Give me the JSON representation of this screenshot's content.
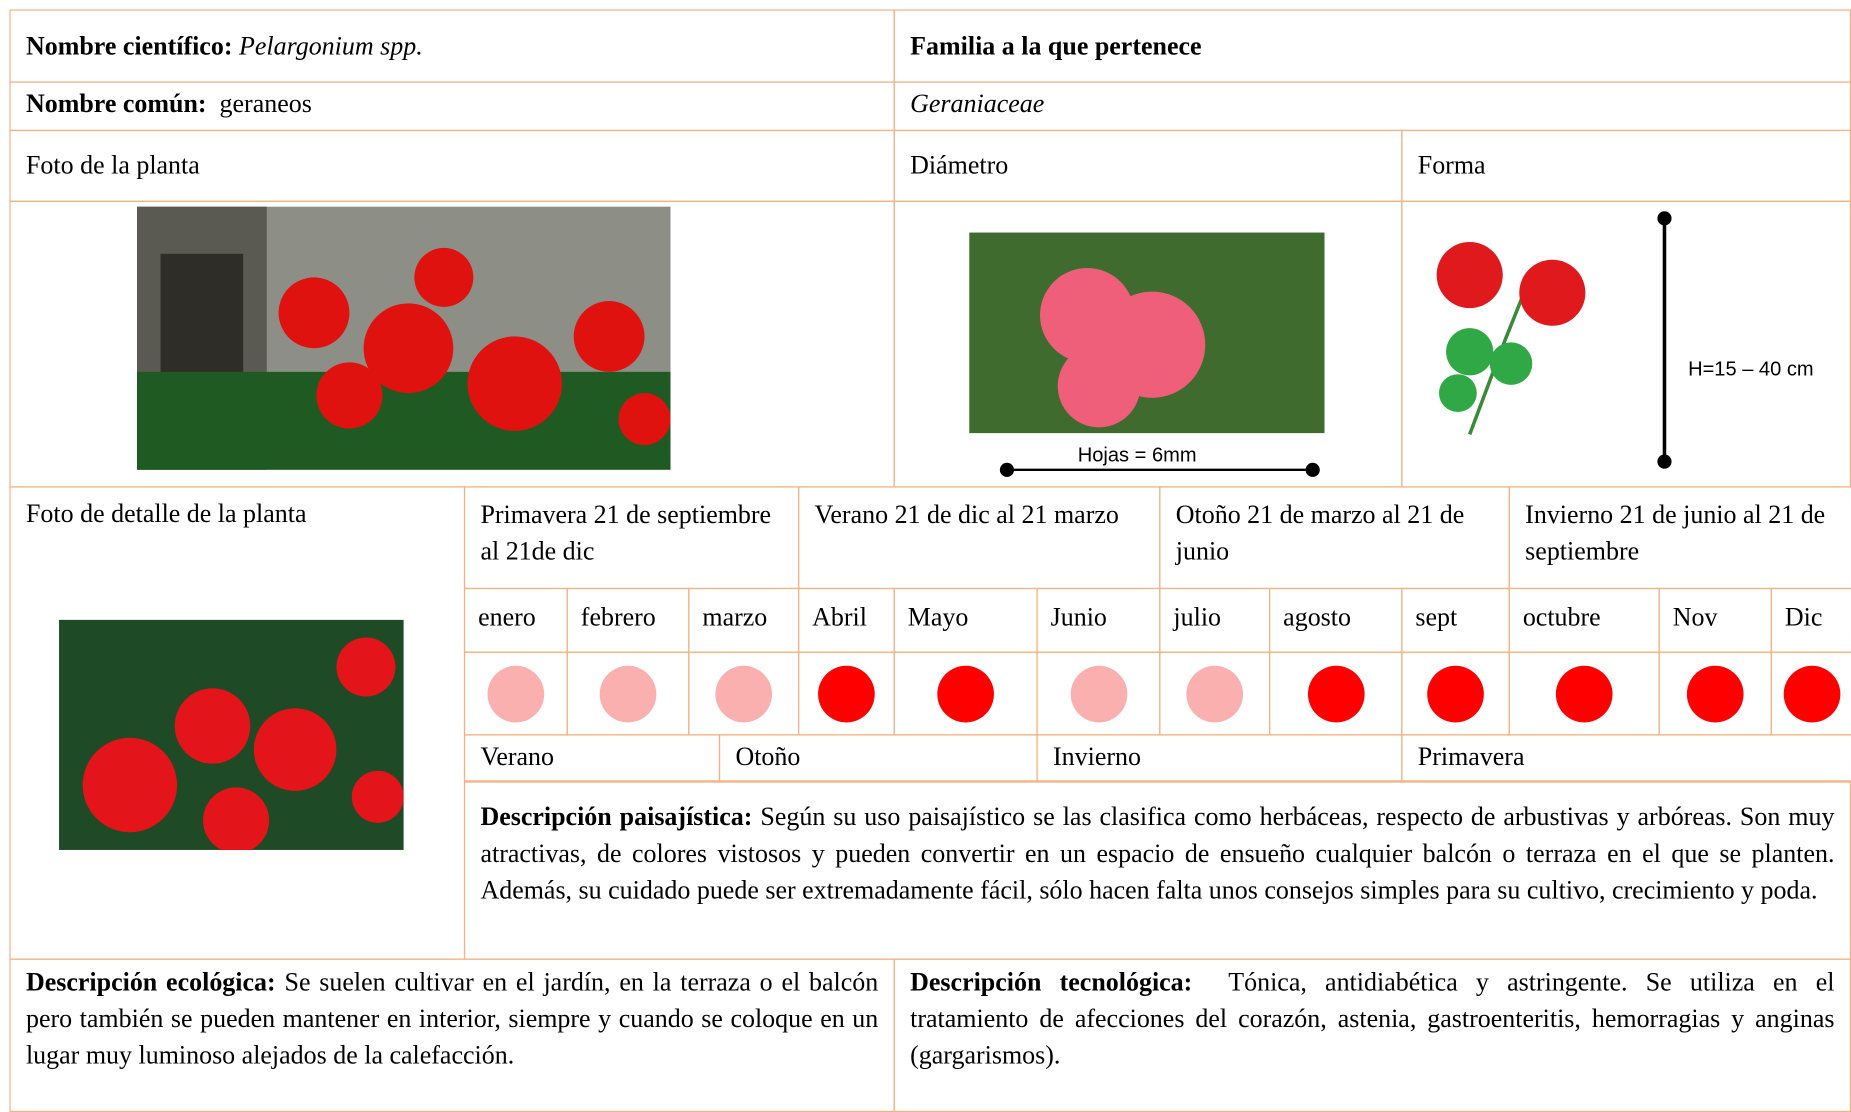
{
  "header": {
    "scientific_name_label": "Nombre científico:",
    "scientific_name": "Pelargonium spp.",
    "family_label": "Familia a la que pertenece",
    "common_name_label": "Nombre común:",
    "common_name": "geraneos",
    "family": "Geraniaceae"
  },
  "photo_label": "Foto de la planta",
  "diameter_label": "Diámetro",
  "shape_label": "Forma",
  "diameter_annotation": "Hojas = 6mm",
  "height_annotation": "H=15 – 40 cm",
  "detail_photo_label": "Foto de detalle de la planta",
  "seasons_top": [
    "Primavera 21 de septiembre al 21de dic",
    "Verano 21 de dic al 21 marzo",
    "Otoño 21 de marzo al 21 de junio",
    "Invierno 21 de junio al 21 de septiembre"
  ],
  "months": [
    {
      "name": "enero",
      "color": "#fbb0b0"
    },
    {
      "name": "febrero",
      "color": "#fbb0b0"
    },
    {
      "name": "marzo",
      "color": "#fbb0b0"
    },
    {
      "name": "Abril",
      "color": "#ff0000"
    },
    {
      "name": "Mayo",
      "color": "#ff0000"
    },
    {
      "name": "Junio",
      "color": "#fbb0b0"
    },
    {
      "name": "julio",
      "color": "#fbb0b0"
    },
    {
      "name": "agosto",
      "color": "#ff0000"
    },
    {
      "name": "sept",
      "color": "#ff0000"
    },
    {
      "name": "octubre",
      "color": "#ff0000"
    },
    {
      "name": "Nov",
      "color": "#ff0000"
    },
    {
      "name": "Dic",
      "color": "#ff0000"
    }
  ],
  "seasons_bottom": [
    "Verano",
    "Otoño",
    "Invierno",
    "Primavera"
  ],
  "descriptions": {
    "landscape_label": "Descripción paisajística:",
    "landscape": "Según su uso paisajístico se las clasifica como herbáceas, respecto de arbustivas y arbóreas. Son muy atractivas, de colores vistosos y pueden convertir en un espacio de ensueño cualquier balcón o terraza en el que se planten. Además, su cuidado puede ser extremadamente fácil, sólo hacen falta unos consejos simples para su cultivo, crecimiento y poda.",
    "ecological_label": "Descripción ecológica:",
    "ecological": "Se suelen cultivar en el jardín, en la terraza o el balcón pero también se pueden mantener en interior, siempre y cuando se coloque en un lugar muy luminoso alejados de la calefacción.",
    "technological_label": "Descripción tecnológica:",
    "technological": "Tónica, antidiabética y astringente. Se utiliza en el tratamiento de afecciones del corazón, astenia, gastroenteritis, hemorragias y anginas (gargarismos)."
  }
}
